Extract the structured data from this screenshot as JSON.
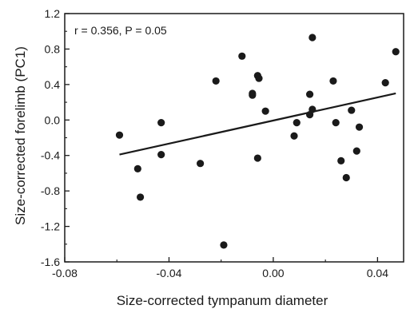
{
  "chart_data": {
    "type": "scatter",
    "title": "",
    "xlabel": "Size-corrected tympanum diameter",
    "ylabel": "Size-corrected forelimb (PC1)",
    "xlim": [
      -0.08,
      0.05
    ],
    "ylim": [
      -1.6,
      1.2
    ],
    "xticks": [
      -0.08,
      -0.04,
      0.0,
      0.04
    ],
    "xtick_labels": [
      "-0.08",
      "-0.04",
      "0.00",
      "0.04"
    ],
    "yticks": [
      -1.6,
      -1.2,
      -0.8,
      -0.4,
      0.0,
      0.4,
      0.8,
      1.2
    ],
    "ytick_labels": [
      "-1.6",
      "-1.2",
      "-0.8",
      "-0.4",
      "0.0",
      "0.4",
      "0.8",
      "1.2"
    ],
    "grid": false,
    "annotation": "r = 0.356, P = 0.05",
    "points": [
      {
        "x": -0.059,
        "y": -0.17
      },
      {
        "x": -0.052,
        "y": -0.55
      },
      {
        "x": -0.051,
        "y": -0.87
      },
      {
        "x": -0.043,
        "y": -0.03
      },
      {
        "x": -0.043,
        "y": -0.39
      },
      {
        "x": -0.028,
        "y": -0.49
      },
      {
        "x": -0.022,
        "y": 0.44
      },
      {
        "x": -0.019,
        "y": -1.41
      },
      {
        "x": -0.012,
        "y": 0.72
      },
      {
        "x": -0.008,
        "y": 0.3
      },
      {
        "x": -0.008,
        "y": 0.28
      },
      {
        "x": -0.006,
        "y": 0.5
      },
      {
        "x": -0.0055,
        "y": 0.47
      },
      {
        "x": -0.006,
        "y": -0.43
      },
      {
        "x": -0.003,
        "y": 0.1
      },
      {
        "x": 0.008,
        "y": -0.18
      },
      {
        "x": 0.009,
        "y": -0.03
      },
      {
        "x": 0.014,
        "y": 0.29
      },
      {
        "x": 0.014,
        "y": 0.06
      },
      {
        "x": 0.015,
        "y": 0.12
      },
      {
        "x": 0.015,
        "y": 0.93
      },
      {
        "x": 0.023,
        "y": 0.44
      },
      {
        "x": 0.024,
        "y": -0.03
      },
      {
        "x": 0.026,
        "y": -0.46
      },
      {
        "x": 0.028,
        "y": -0.65
      },
      {
        "x": 0.03,
        "y": 0.11
      },
      {
        "x": 0.032,
        "y": -0.35
      },
      {
        "x": 0.033,
        "y": -0.08
      },
      {
        "x": 0.043,
        "y": 0.42
      },
      {
        "x": 0.047,
        "y": 0.77
      }
    ],
    "trendline": {
      "x": [
        -0.059,
        0.047
      ],
      "y": [
        -0.39,
        0.3
      ]
    },
    "colors": {
      "points": "#1a1a1a",
      "trendline": "#1a1a1a",
      "axes": "#1a1a1a"
    }
  }
}
